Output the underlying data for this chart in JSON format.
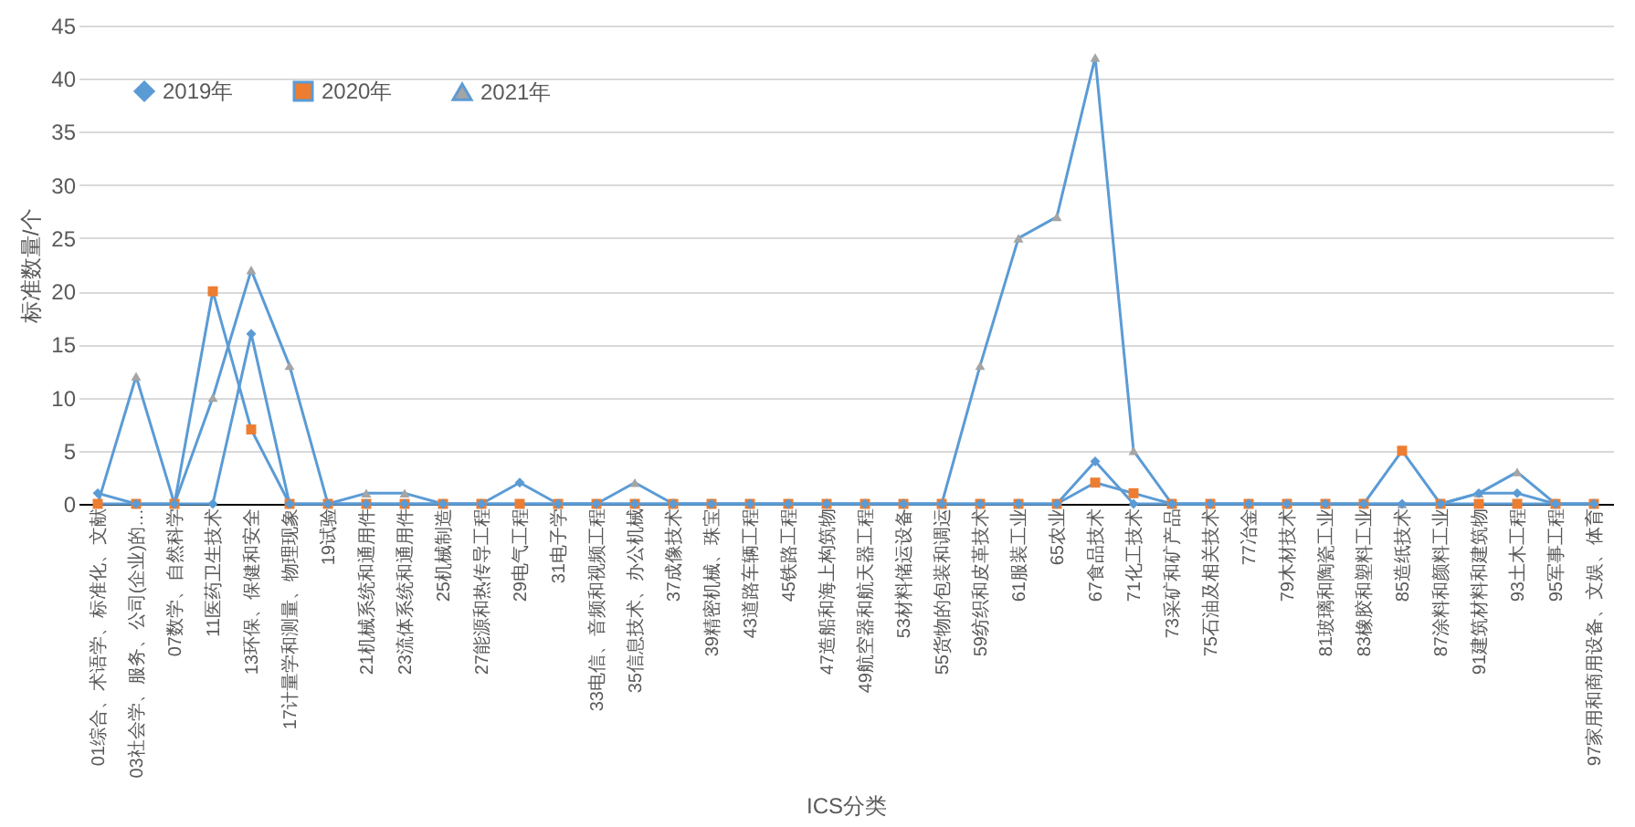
{
  "chart_data": {
    "type": "line",
    "xlabel": "ICS分类",
    "ylabel": "标准数量/个",
    "categories": [
      "01综合、术语学、标准化、文献",
      "03社会学、服务、公司(企业)的…",
      "07数学、自然科学",
      "11医药卫生技术",
      "13环保、保健和安全",
      "17计量学和测量、物理现象",
      "19试验",
      "21机械系统和通用件",
      "23流体系统和通用件",
      "25机械制造",
      "27能源和热传导工程",
      "29电气工程",
      "31电子学",
      "33电信、音频和视频工程",
      "35信息技术、办公机械",
      "37成像技术",
      "39精密机械、珠宝",
      "43道路车辆工程",
      "45铁路工程",
      "47造船和海上构筑物",
      "49航空器和航天器工程",
      "53材料储运设备",
      "55货物的包装和调运",
      "59纺织和皮革技术",
      "61服装工业",
      "65农业",
      "67食品技术",
      "71化工技术",
      "73采矿和矿产品",
      "75石油及相关技术",
      "77冶金",
      "79木材技术",
      "81玻璃和陶瓷工业",
      "83橡胶和塑料工业",
      "85造纸技术",
      "87涂料和颜料工业",
      "91建筑材料和建筑物",
      "93土木工程",
      "95军事工程",
      "97家用和商用设备、文娱、体育"
    ],
    "series": [
      {
        "name": "2019年",
        "color": "#5b9bd5",
        "marker": "diamond",
        "values": [
          1,
          0,
          0,
          0,
          16,
          0,
          0,
          0,
          0,
          0,
          0,
          2,
          0,
          0,
          0,
          0,
          0,
          0,
          0,
          0,
          0,
          0,
          0,
          0,
          0,
          0,
          4,
          0,
          0,
          0,
          0,
          0,
          0,
          0,
          0,
          0,
          1,
          1,
          0,
          0
        ]
      },
      {
        "name": "2020年",
        "color": "#ed7d31",
        "marker": "square",
        "values": [
          0,
          0,
          0,
          20,
          7,
          0,
          0,
          0,
          0,
          0,
          0,
          0,
          0,
          0,
          0,
          0,
          0,
          0,
          0,
          0,
          0,
          0,
          0,
          0,
          0,
          0,
          2,
          1,
          0,
          0,
          0,
          0,
          0,
          0,
          5,
          0,
          0,
          0,
          0,
          0
        ]
      },
      {
        "name": "2021年",
        "color": "#a5a5a5",
        "marker": "triangle",
        "values": [
          0,
          12,
          0,
          10,
          22,
          13,
          0,
          1,
          1,
          0,
          0,
          0,
          0,
          0,
          2,
          0,
          0,
          0,
          0,
          0,
          0,
          0,
          0,
          13,
          25,
          27,
          42,
          5,
          0,
          0,
          0,
          0,
          0,
          0,
          0,
          0,
          1,
          3,
          0,
          0
        ]
      }
    ],
    "ylim": [
      0,
      45
    ],
    "yticks": [
      0,
      5,
      10,
      15,
      20,
      25,
      30,
      35,
      40,
      45
    ],
    "grid": "y",
    "legend": "top left",
    "line_style": "solid"
  }
}
